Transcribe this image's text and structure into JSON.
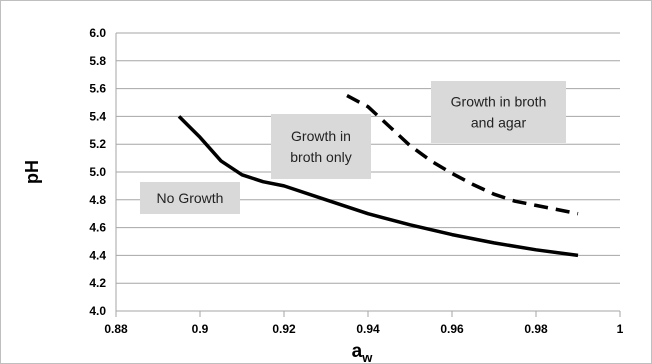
{
  "chart_data": {
    "type": "line",
    "title": "",
    "xlabel": "a",
    "xlabel_sub": "w",
    "ylabel": "pH",
    "xlim": [
      0.88,
      1.0
    ],
    "ylim": [
      4.0,
      6.0
    ],
    "x_ticks": [
      0.88,
      0.9,
      0.92,
      0.94,
      0.96,
      0.98,
      1.0
    ],
    "x_tick_labels": [
      "0.88",
      "0.9",
      "0.92",
      "0.94",
      "0.96",
      "0.98",
      "1"
    ],
    "y_ticks": [
      4.0,
      4.2,
      4.4,
      4.6,
      4.8,
      5.0,
      5.2,
      5.4,
      5.6,
      5.8,
      6.0
    ],
    "y_tick_labels": [
      "4.0",
      "4.2",
      "4.4",
      "4.6",
      "4.8",
      "5.0",
      "5.2",
      "5.4",
      "5.6",
      "5.8",
      "6.0"
    ],
    "grid": "horizontal",
    "series": [
      {
        "style": "solid",
        "color": "#000000",
        "x": [
          0.895,
          0.9,
          0.905,
          0.91,
          0.915,
          0.92,
          0.93,
          0.94,
          0.95,
          0.96,
          0.97,
          0.98,
          0.99
        ],
        "y": [
          5.4,
          5.25,
          5.08,
          4.98,
          4.93,
          4.9,
          4.8,
          4.7,
          4.62,
          4.55,
          4.49,
          4.44,
          4.4
        ]
      },
      {
        "style": "dashed",
        "color": "#000000",
        "x": [
          0.935,
          0.94,
          0.945,
          0.95,
          0.955,
          0.96,
          0.965,
          0.97,
          0.975,
          0.98,
          0.985,
          0.99
        ],
        "y": [
          5.55,
          5.47,
          5.33,
          5.19,
          5.08,
          4.99,
          4.91,
          4.84,
          4.79,
          4.76,
          4.73,
          4.7
        ]
      }
    ],
    "annotations": [
      {
        "lines": [
          "No Growth"
        ]
      },
      {
        "lines": [
          "Growth in",
          "broth only"
        ]
      },
      {
        "lines": [
          "Growth in broth",
          "and agar"
        ]
      }
    ],
    "colors": {
      "grid": "#a6a6a6",
      "axis": "#a6a6a6",
      "box_fill": "#d9d9d9",
      "line": "#000000"
    }
  }
}
